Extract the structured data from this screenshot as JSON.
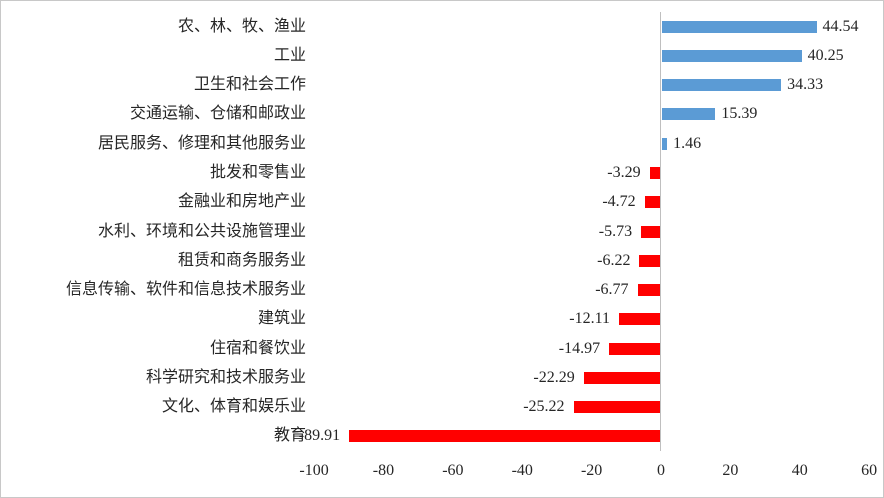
{
  "chart_data": {
    "type": "bar",
    "orientation": "horizontal",
    "title": "",
    "xlabel": "",
    "ylabel": "",
    "categories": [
      "农、林、牧、渔业",
      "工业",
      "卫生和社会工作",
      "交通运输、仓储和邮政业",
      "居民服务、修理和其他服务业",
      "批发和零售业",
      "金融业和房地产业",
      "水利、环境和公共设施管理业",
      "租赁和商务服务业",
      "信息传输、软件和信息技术服务业",
      "建筑业",
      "住宿和餐饮业",
      "科学研究和技术服务业",
      "文化、体育和娱乐业",
      "教育"
    ],
    "values": [
      44.54,
      40.25,
      34.33,
      15.39,
      1.46,
      -3.29,
      -4.72,
      -5.73,
      -6.22,
      -6.77,
      -12.11,
      -14.97,
      -22.29,
      -25.22,
      -89.91
    ],
    "value_labels": [
      "44.54",
      "40.25",
      "34.33",
      "15.39",
      "1.46",
      "-3.29",
      "-4.72",
      "-5.73",
      "-6.22",
      "-6.77",
      "-12.11",
      "-14.97",
      "-22.29",
      "-25.22",
      "-89.91"
    ],
    "xlim": [
      -100,
      60
    ],
    "x_ticks": [
      -100,
      -80,
      -60,
      -40,
      -20,
      0,
      20,
      40,
      60
    ],
    "x_tick_labels": [
      "-100",
      "-80",
      "-60",
      "-40",
      "-20",
      "0",
      "20",
      "40",
      "60"
    ],
    "grid": false,
    "legend": "none",
    "colors": {
      "positive_bar": "#5B9BD5",
      "negative_bar": "#FF0000",
      "axis_line": "#BFBFBF",
      "label_text": "#262626"
    }
  }
}
